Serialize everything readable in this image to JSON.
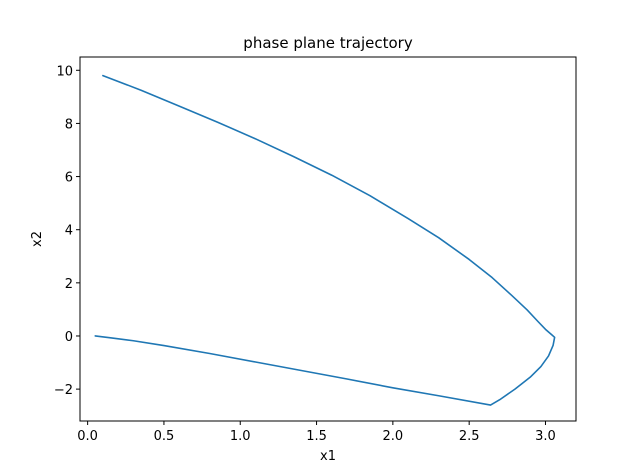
{
  "chart_data": {
    "type": "line",
    "title": "phase plane trajectory",
    "xlabel": "x1",
    "ylabel": "x2",
    "xlim": [
      -0.05,
      3.2
    ],
    "ylim": [
      -3.2,
      10.5
    ],
    "xticks": [
      0.0,
      0.5,
      1.0,
      1.5,
      2.0,
      2.5,
      3.0
    ],
    "xtick_labels": [
      "0.0",
      "0.5",
      "1.0",
      "1.5",
      "2.0",
      "2.5",
      "3.0"
    ],
    "yticks": [
      -2,
      0,
      2,
      4,
      6,
      8,
      10
    ],
    "ytick_labels": [
      "−2",
      "0",
      "2",
      "4",
      "6",
      "8",
      "10"
    ],
    "grid": false,
    "legend": "none",
    "series": [
      {
        "color": "#1f77b4",
        "x": [
          0.1,
          0.35,
          0.6,
          0.85,
          1.1,
          1.35,
          1.6,
          1.85,
          2.1,
          2.3,
          2.5,
          2.65,
          2.78,
          2.88,
          2.95,
          3.0,
          3.04,
          3.06,
          3.05,
          3.02,
          2.97,
          2.9,
          2.8,
          2.7,
          2.64,
          2.3,
          2.0,
          1.7,
          1.4,
          1.1,
          0.8,
          0.5,
          0.3,
          0.15,
          0.05
        ],
        "y": [
          9.8,
          9.25,
          8.65,
          8.05,
          7.42,
          6.75,
          6.05,
          5.28,
          4.42,
          3.7,
          2.88,
          2.2,
          1.52,
          0.98,
          0.55,
          0.25,
          0.05,
          -0.05,
          -0.35,
          -0.75,
          -1.15,
          -1.55,
          -2.0,
          -2.4,
          -2.6,
          -2.25,
          -1.95,
          -1.62,
          -1.3,
          -0.98,
          -0.66,
          -0.36,
          -0.18,
          -0.07,
          0.0
        ]
      }
    ]
  }
}
